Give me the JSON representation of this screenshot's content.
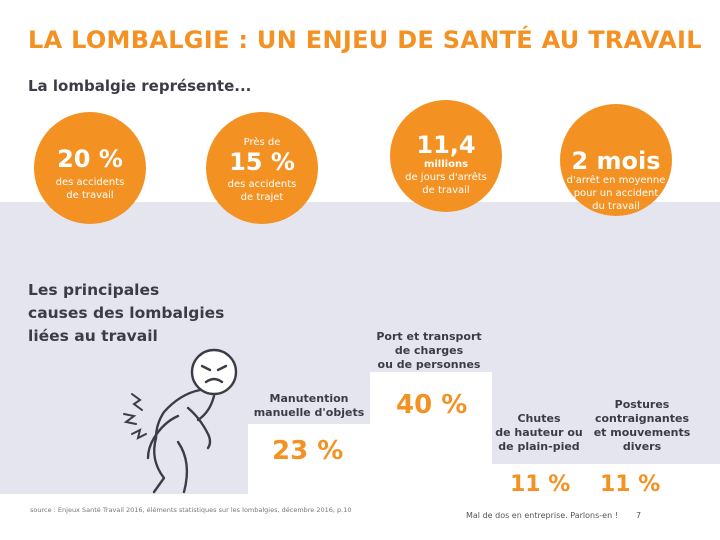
{
  "title": "LA LOMBALGIE : UN ENJEU DE SANTÉ AU TRAVAIL",
  "subtitle": "La lombalgie représente...",
  "stats": [
    {
      "pre": "",
      "value": "20 %",
      "line1": "des accidents",
      "line2": "de travail",
      "line3": ""
    },
    {
      "pre": "Près de",
      "value": "15 %",
      "line1": "des accidents",
      "line2": "de trajet",
      "line3": ""
    },
    {
      "pre": "",
      "value": "11,4",
      "line1": "millions",
      "line2": "de jours d'arrêts",
      "line3": "de travail"
    },
    {
      "pre": "",
      "value": "2 mois",
      "line1": "d'arrêt en moyenne",
      "line2": "pour un accident",
      "line3": "du travail"
    }
  ],
  "causes_heading": [
    "Les principales",
    "causes des lombalgies",
    "liées au travail"
  ],
  "causes": [
    {
      "label": [
        "Manutention",
        "manuelle d'objets"
      ],
      "value": "23 %"
    },
    {
      "label": [
        "Port et transport",
        "de charges",
        "ou de personnes"
      ],
      "value": "40 %"
    },
    {
      "label": [
        "Chutes",
        "de hauteur ou",
        "de plain-pied"
      ],
      "value": "11 %"
    },
    {
      "label": [
        "Postures",
        "contraignantes",
        "et mouvements",
        "divers"
      ],
      "value": "11 %"
    }
  ],
  "footer": {
    "source": "source : Enjeux Santé Travail 2016, éléments statistiques sur les lombalgies, décembre 2016, p.10",
    "tagline": "Mal de dos en entreprise. Parlons-en !",
    "page_number": "7"
  },
  "colors": {
    "accent": "#f39223",
    "band": "#e4e5ee",
    "text": "#3c3c46"
  }
}
